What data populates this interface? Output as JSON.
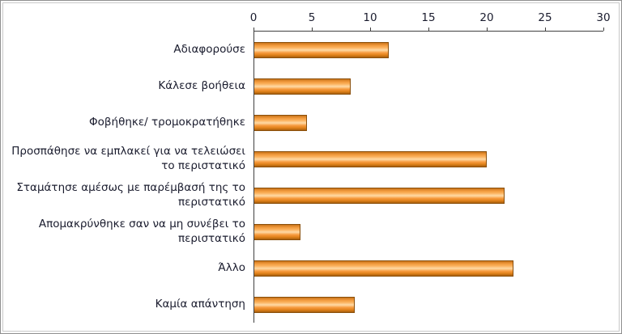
{
  "chart_data": {
    "type": "bar",
    "orientation": "horizontal",
    "title": "",
    "categories": [
      "Αδιαφορούσε",
      "Κάλεσε βοήθεια",
      "Φοβήθηκε/ τρομοκρατήθηκε",
      "Προσπάθησε να εμπλακεί για να τελειώσει το περιστατικό",
      "Σταμάτησε αμέσως με παρέμβασή της το περιστατικό",
      "Απομακρύνθηκε σαν να μη συνέβει το περιστατικό",
      "Άλλο",
      "Καμία απάντηση"
    ],
    "values": [
      11.6,
      8.3,
      4.6,
      20,
      21.5,
      4,
      22.3,
      8.7
    ],
    "x_axis": {
      "position": "top",
      "min": 0,
      "max": 30,
      "ticks": [
        0,
        5,
        10,
        15,
        20,
        25,
        30
      ],
      "tick_labels": [
        "0",
        "5",
        "10",
        "15",
        "20",
        "25",
        "30"
      ]
    },
    "legend": "none",
    "grid": "off",
    "styles": {
      "bar_fill": "#F79646",
      "bar_fill_highlight": "#FEDAA6",
      "bar_border": "#8A4F0B",
      "axis_color": "#404040",
      "text_color": "#1A1C2E",
      "frame_border": "#8F8F8F",
      "background": "#FFFFFF"
    }
  }
}
